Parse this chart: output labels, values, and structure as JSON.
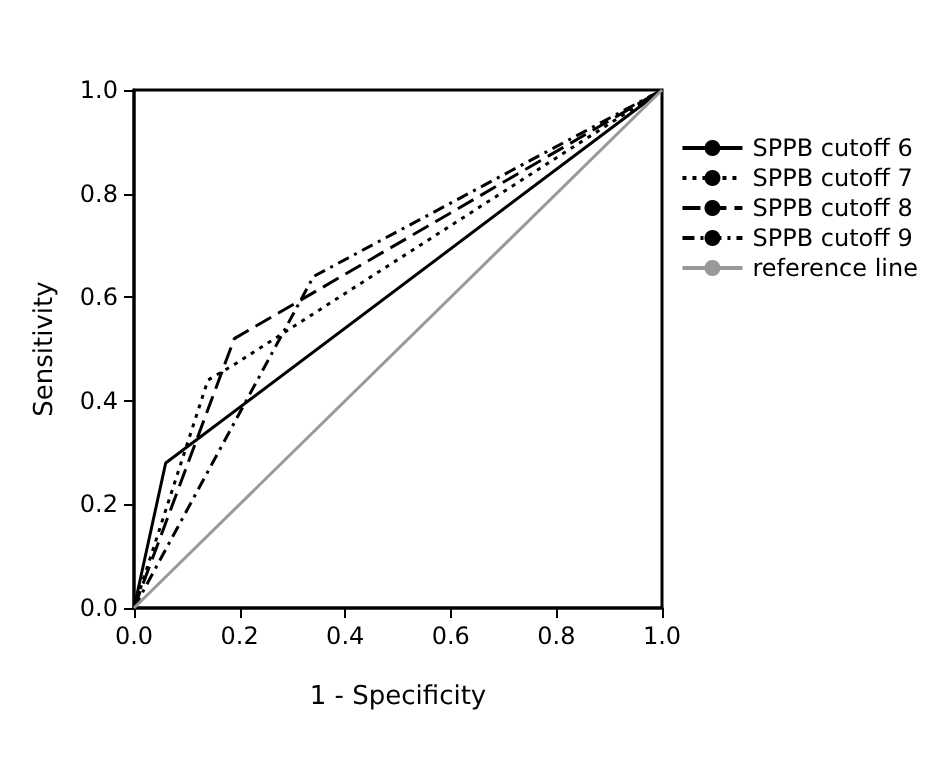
{
  "chart_data": {
    "type": "line",
    "xlabel": "1 - Specificity",
    "ylabel": "Sensitivity",
    "xlim": [
      0,
      1
    ],
    "ylim": [
      0,
      1
    ],
    "xticks": [
      {
        "value": 0,
        "label": "0.0"
      },
      {
        "value": 0.2,
        "label": "0.2"
      },
      {
        "value": 0.4,
        "label": "0.4"
      },
      {
        "value": 0.6,
        "label": "0.6"
      },
      {
        "value": 0.8,
        "label": "0.8"
      },
      {
        "value": 1,
        "label": "1.0"
      }
    ],
    "yticks": [
      {
        "value": 0,
        "label": "0.0"
      },
      {
        "value": 0.2,
        "label": "0.2"
      },
      {
        "value": 0.4,
        "label": "0.4"
      },
      {
        "value": 0.6,
        "label": "0.6"
      },
      {
        "value": 0.8,
        "label": "0.8"
      },
      {
        "value": 1,
        "label": "1.0"
      }
    ],
    "grid": false,
    "legend": "right",
    "marker": "none",
    "series": [
      {
        "name": "SPPB cutoff 6",
        "color": "#000000",
        "line_style": "solid",
        "x": [
          0,
          0.06,
          1
        ],
        "values": [
          0,
          0.28,
          1
        ]
      },
      {
        "name": "SPPB cutoff 7",
        "color": "#000000",
        "line_style": "dotted",
        "x": [
          0,
          0.14,
          0.19,
          1
        ],
        "values": [
          0,
          0.44,
          0.47,
          1
        ]
      },
      {
        "name": "SPPB cutoff 8",
        "color": "#000000",
        "line_style": "dashed",
        "x": [
          0,
          0.19,
          1
        ],
        "values": [
          0,
          0.52,
          1
        ]
      },
      {
        "name": "SPPB cutoff 9",
        "color": "#000000",
        "line_style": "dashdot",
        "x": [
          0,
          0.34,
          1
        ],
        "values": [
          0,
          0.64,
          1
        ]
      },
      {
        "name": "reference line",
        "color": "#999999",
        "line_style": "solid",
        "x": [
          0,
          1
        ],
        "values": [
          0,
          1
        ]
      }
    ]
  }
}
